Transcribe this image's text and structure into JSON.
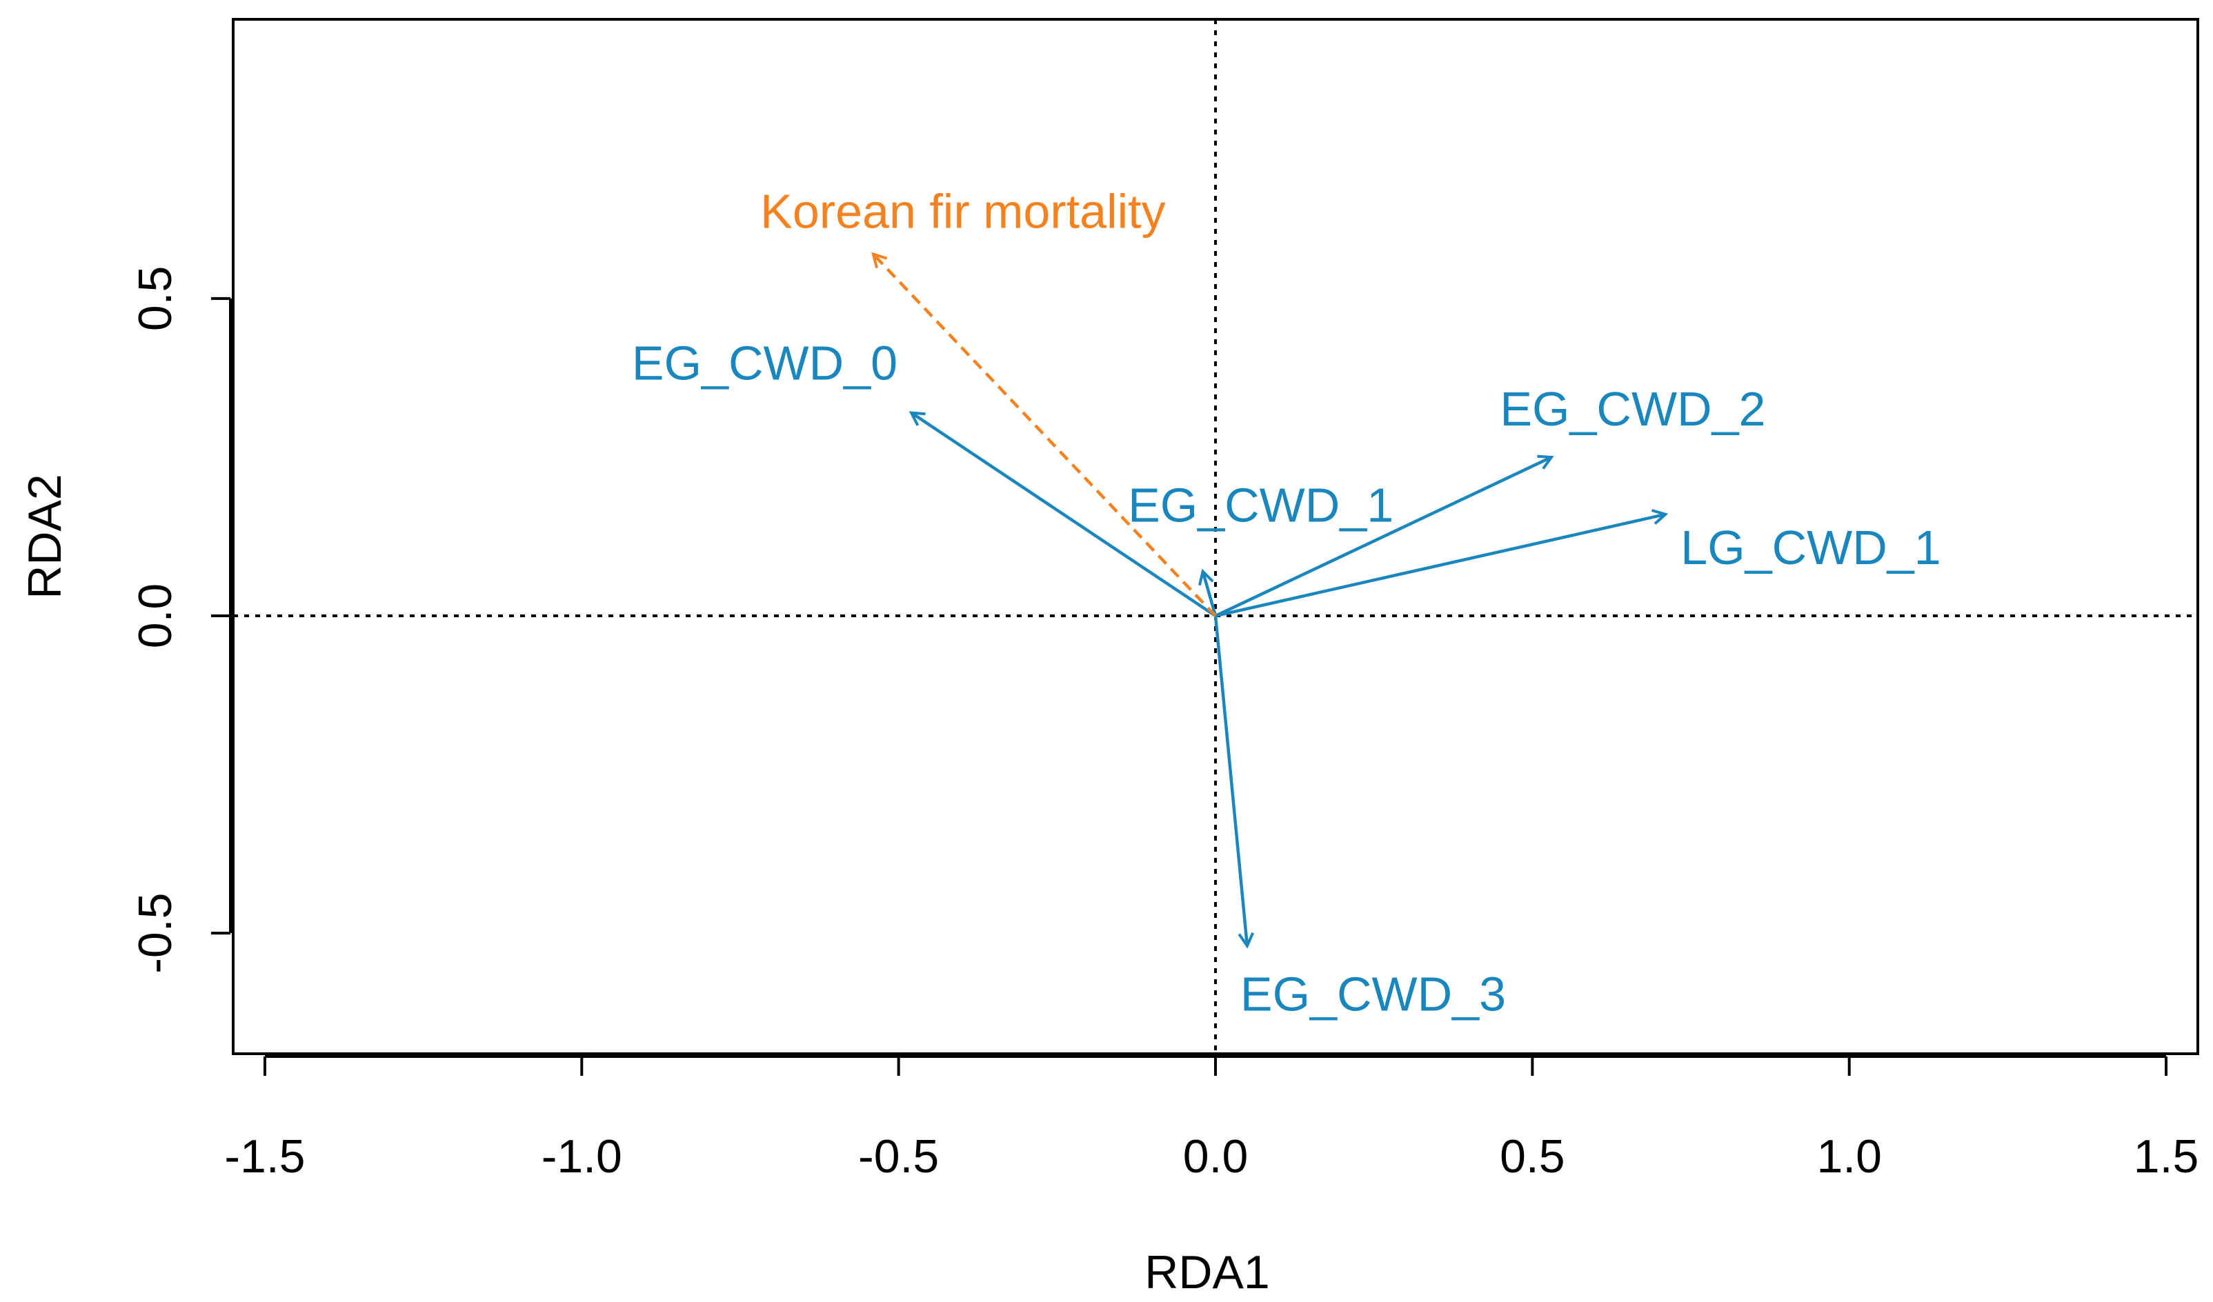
{
  "chart_data": {
    "type": "biplot",
    "title": "",
    "xlabel": "RDA1",
    "ylabel": "RDA2",
    "xlim": [
      -1.55,
      1.55
    ],
    "ylim": [
      -0.69,
      0.94
    ],
    "x_ticks": [
      -1.5,
      -1.0,
      -0.5,
      0.0,
      0.5,
      1.0,
      1.5
    ],
    "x_tick_labels": [
      "-1.5",
      "-1.0",
      "-0.5",
      "0.0",
      "0.5",
      "1.0",
      "1.5"
    ],
    "y_ticks": [
      -0.5,
      0.0,
      0.5
    ],
    "y_tick_labels": [
      "-0.5",
      "0.0",
      "0.5"
    ],
    "reference_lines": {
      "x": 0,
      "y": 0,
      "style": "dotted"
    },
    "colors": {
      "predictor": "#1a86be",
      "response": "#f5821f",
      "axis": "#000000"
    },
    "series": [
      {
        "name": "EG_CWD_0",
        "role": "predictor",
        "x": -0.48,
        "y": 0.32,
        "label_anchor": "end"
      },
      {
        "name": "EG_CWD_1",
        "role": "predictor",
        "x": -0.02,
        "y": 0.07,
        "label_anchor": "middle"
      },
      {
        "name": "EG_CWD_2",
        "role": "predictor",
        "x": 0.53,
        "y": 0.25,
        "label_anchor": "middle"
      },
      {
        "name": "LG_CWD_1",
        "role": "predictor",
        "x": 0.71,
        "y": 0.16,
        "label_anchor": "start"
      },
      {
        "name": "EG_CWD_3",
        "role": "predictor",
        "x": 0.05,
        "y": -0.52,
        "label_anchor": "start"
      },
      {
        "name": "Korean fir mortality",
        "role": "response",
        "x": -0.54,
        "y": 0.57,
        "label_anchor": "middle"
      }
    ]
  }
}
